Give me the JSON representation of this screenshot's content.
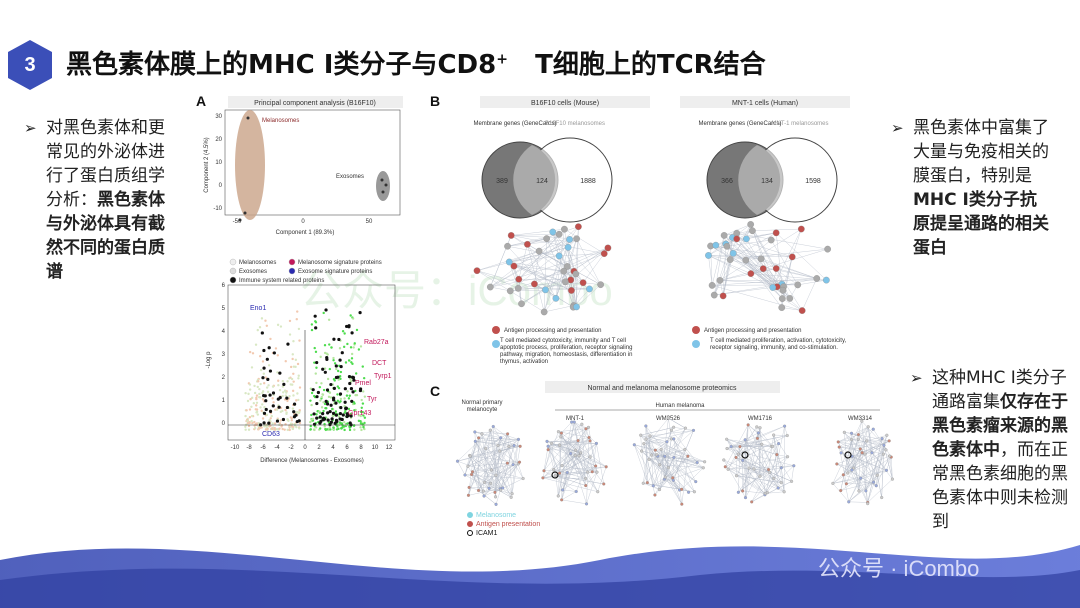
{
  "header": {
    "number": "3",
    "title_main": "黑色素体膜上的MHC I类分子与CD8",
    "title_sup": "+",
    "title_tail": "T细胞上的TCR结合"
  },
  "left_bullet": {
    "plain": "对黑色素体和更常见的外泌体进行了蛋白质组学分析：",
    "bold": "黑色素体与外泌体具有截然不同的蛋白质谱"
  },
  "right_bullet_1": {
    "plain": "黑色素体中富集了大量与免疫相关的膜蛋白，特别是",
    "bold": "MHC I类分子抗原提呈通路的相关蛋白"
  },
  "right_bullet_2": {
    "plain": "这种MHC I类分子通路富集",
    "bold": "仅存在于黑色素瘤来源的黑色素体中",
    "tail": "，而在正常黑色素细胞的黑色素体中则未检测到"
  },
  "figure": {
    "panel_a": {
      "label": "A",
      "pca": {
        "title": "Principal component analysis (B16F10)",
        "x_label": "Component 1 (89.3%)",
        "y_label": "Component 2 (4.5%)",
        "x_ticks": [
          "-50",
          "0",
          "50"
        ],
        "y_ticks": [
          "30",
          "20",
          "10",
          "0",
          "-10"
        ],
        "group_1": "Melanosomes",
        "group_2": "Exosomes"
      },
      "volcano": {
        "legend": [
          "Melanosomes",
          "Exosomes",
          "Immune system related proteins",
          "Melanosome signature proteins",
          "Exosome signature proteins"
        ],
        "x_label": "Difference (Melanosomes - Exosomes)",
        "y_label": "-Log p",
        "x_ticks": [
          "-10",
          "-8",
          "-6",
          "-4",
          "-2",
          "0",
          "2",
          "4",
          "6",
          "8",
          "10",
          "12"
        ],
        "y_ticks": [
          "6",
          "5",
          "4",
          "3",
          "2",
          "1",
          "0"
        ],
        "proteins": [
          "Eno1",
          "Rab27a",
          "DCT",
          "Tyrp1",
          "Pmel",
          "Tyr",
          "Gpr143",
          "CD63"
        ]
      }
    },
    "panel_b": {
      "label": "B",
      "mouse": {
        "title": "B16F10 cells (Mouse)",
        "set_1": "Membrane genes (GeneCards)",
        "set_2": "B16F10 melanosomes",
        "only_1": "389",
        "both": "124",
        "only_2": "1888",
        "legend_1": "Antigen processing and presentation",
        "legend_2": "T cell mediated cytotoxicity, immunity and T cell apoptotic process, proliferation, receptor signaling pathway, migration, homeostasis, differentiation in thymus, activation"
      },
      "human": {
        "title": "MNT-1 cells (Human)",
        "set_1": "Membrane genes (GeneCards)",
        "set_2": "MNT-1 melanosomes",
        "only_1": "366",
        "both": "134",
        "only_2": "1598",
        "legend_1": "Antigen processing and presentation",
        "legend_2": "T cell mediated proliferation, activation, cytotoxicity, receptor signaling, immunity, and co-stimulation."
      }
    },
    "panel_c": {
      "label": "C",
      "title": "Normal and melanoma melanosome proteomics",
      "normal": "Normal primary melanocyte",
      "group": "Human melanoma",
      "samples": [
        "MNT-1",
        "WM3526",
        "WM1716",
        "WM3314"
      ],
      "legend": [
        "Melanosome",
        "Antigen presentation",
        "ICAM1"
      ]
    }
  },
  "watermark_center": "公众号：iCombo",
  "watermark": "公众号 · iCombo"
}
